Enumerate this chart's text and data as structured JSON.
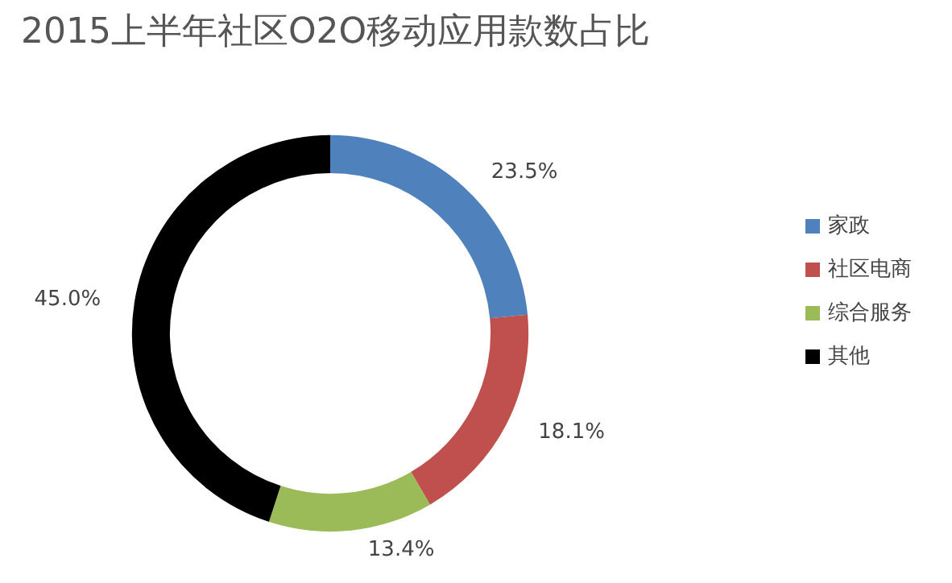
{
  "chart_data": {
    "type": "donut",
    "title": "2015上半年社区O2O移动应用款数占比",
    "categories": [
      "家政",
      "社区电商",
      "综合服务",
      "其他"
    ],
    "values": [
      23.5,
      18.1,
      13.4,
      45.0
    ],
    "value_labels": [
      "23.5%",
      "18.1%",
      "13.4%",
      "45.0%"
    ],
    "colors": [
      "#4f81bd",
      "#c0504d",
      "#9bbb59",
      "#000000"
    ],
    "legend": "right"
  }
}
